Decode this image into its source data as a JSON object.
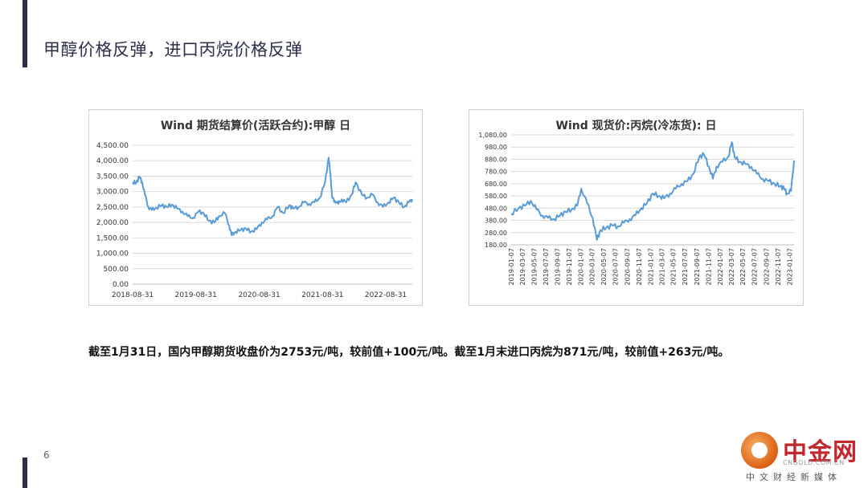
{
  "slide": {
    "title": "甲醇价格反弹，进口丙烷价格反弹",
    "summary": "截至1月31日，国内甲醇期货收盘价为2753元/吨，较前值+100元/吨。截至1月末进口丙烷为871元/吨，较前值+263元/吨。",
    "page_number": "6",
    "logo": {
      "name": "中金网",
      "domain": "CNGOLD.COM.CN",
      "tagline": "中文财经新媒体"
    }
  },
  "colors": {
    "series": "#5b9bd5",
    "grid": "#d9d9d9",
    "accent": "#2b2f4a"
  },
  "chart_data": [
    {
      "type": "line",
      "title": "Wind 期货结算价(活跃合约):甲醇 日",
      "ylim": [
        0,
        4500
      ],
      "yticks": [
        "0.00",
        "500.00",
        "1,000.00",
        "1,500.00",
        "2,000.00",
        "2,500.00",
        "3,000.00",
        "3,500.00",
        "4,000.00",
        "4,500.00"
      ],
      "xlim": [
        "2018-08-31",
        "2023-01-31"
      ],
      "xticks": [
        "2018-08-31",
        "2019-08-31",
        "2020-08-31",
        "2021-08-31",
        "2022-08-31"
      ],
      "grid": true,
      "series": [
        {
          "name": "",
          "x": [
            "2018-08-31",
            "2018-09-20",
            "2018-10-10",
            "2018-10-25",
            "2018-11-10",
            "2018-11-30",
            "2018-12-20",
            "2019-01-15",
            "2019-02-15",
            "2019-03-15",
            "2019-04-15",
            "2019-05-15",
            "2019-06-15",
            "2019-07-15",
            "2019-08-15",
            "2019-09-15",
            "2019-10-15",
            "2019-11-15",
            "2019-12-15",
            "2020-01-10",
            "2020-02-15",
            "2020-03-10",
            "2020-03-25",
            "2020-04-15",
            "2020-05-15",
            "2020-06-15",
            "2020-07-15",
            "2020-08-15",
            "2020-09-15",
            "2020-10-15",
            "2020-11-15",
            "2020-12-15",
            "2021-01-15",
            "2021-02-20",
            "2021-03-15",
            "2021-04-15",
            "2021-05-15",
            "2021-06-15",
            "2021-07-15",
            "2021-08-15",
            "2021-09-15",
            "2021-10-05",
            "2021-10-15",
            "2021-10-25",
            "2021-11-10",
            "2021-11-30",
            "2021-12-20",
            "2022-01-15",
            "2022-02-15",
            "2022-03-10",
            "2022-04-15",
            "2022-05-15",
            "2022-06-15",
            "2022-07-15",
            "2022-08-15",
            "2022-09-15",
            "2022-10-15",
            "2022-11-15",
            "2022-12-15",
            "2023-01-10",
            "2023-01-31"
          ],
          "values": [
            3300,
            3280,
            3480,
            3300,
            2900,
            2500,
            2400,
            2480,
            2550,
            2500,
            2580,
            2450,
            2350,
            2200,
            2150,
            2350,
            2300,
            2050,
            2000,
            2200,
            2300,
            1900,
            1580,
            1700,
            1750,
            1800,
            1700,
            1780,
            2000,
            2100,
            2200,
            2500,
            2300,
            2550,
            2450,
            2500,
            2650,
            2600,
            2650,
            2800,
            3300,
            4100,
            3600,
            2800,
            2700,
            2600,
            2750,
            2650,
            2900,
            3300,
            2900,
            2800,
            2900,
            2650,
            2500,
            2650,
            2800,
            2650,
            2500,
            2650,
            2753
          ]
        }
      ]
    },
    {
      "type": "line",
      "title": "Wind 现货价:丙烷(冷冻货): 日",
      "ylim": [
        180,
        1080
      ],
      "yticks": [
        "180.00",
        "280.00",
        "380.00",
        "480.00",
        "580.00",
        "680.00",
        "780.00",
        "880.00",
        "980.00",
        "1,080.00"
      ],
      "xlim": [
        "2019-01-07",
        "2023-01-31"
      ],
      "xticks": [
        "2019-01-07",
        "2019-03-07",
        "2019-05-07",
        "2019-07-07",
        "2019-09-07",
        "2019-11-07",
        "2020-01-07",
        "2020-03-07",
        "2020-05-07",
        "2020-07-07",
        "2020-09-07",
        "2020-11-07",
        "2021-01-07",
        "2021-03-07",
        "2021-05-07",
        "2021-07-07",
        "2021-09-07",
        "2021-11-07",
        "2022-01-07",
        "2022-03-07",
        "2022-05-07",
        "2022-07-07",
        "2022-09-07",
        "2022-11-07",
        "2023-01-07"
      ],
      "grid": true,
      "series": [
        {
          "name": "",
          "x": [
            "2019-01-07",
            "2019-02-15",
            "2019-03-20",
            "2019-04-20",
            "2019-05-20",
            "2019-06-20",
            "2019-07-20",
            "2019-08-20",
            "2019-09-20",
            "2019-10-20",
            "2019-11-20",
            "2019-12-20",
            "2020-01-10",
            "2020-02-10",
            "2020-03-10",
            "2020-04-01",
            "2020-04-20",
            "2020-05-20",
            "2020-06-20",
            "2020-07-20",
            "2020-08-20",
            "2020-09-20",
            "2020-10-20",
            "2020-11-20",
            "2020-12-20",
            "2021-01-20",
            "2021-02-20",
            "2021-03-20",
            "2021-04-20",
            "2021-05-20",
            "2021-06-20",
            "2021-07-20",
            "2021-08-20",
            "2021-09-20",
            "2021-10-15",
            "2021-11-10",
            "2021-12-01",
            "2021-12-20",
            "2022-01-20",
            "2022-02-20",
            "2022-03-10",
            "2022-03-25",
            "2022-04-20",
            "2022-05-20",
            "2022-06-20",
            "2022-07-20",
            "2022-08-20",
            "2022-09-20",
            "2022-10-20",
            "2022-11-20",
            "2022-12-10",
            "2022-12-25",
            "2023-01-15",
            "2023-01-31"
          ],
          "values": [
            430,
            480,
            500,
            540,
            470,
            420,
            400,
            390,
            420,
            450,
            470,
            500,
            640,
            520,
            400,
            220,
            300,
            320,
            340,
            330,
            360,
            390,
            420,
            480,
            520,
            600,
            580,
            560,
            600,
            640,
            680,
            700,
            760,
            900,
            920,
            820,
            720,
            820,
            860,
            900,
            1020,
            900,
            860,
            840,
            820,
            760,
            720,
            700,
            680,
            660,
            640,
            600,
            620,
            871
          ]
        }
      ]
    }
  ]
}
